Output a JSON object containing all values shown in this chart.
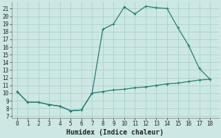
{
  "xlabel": "Humidex (Indice chaleur)",
  "background_color": "#cde8e4",
  "grid_color": "#aed4ce",
  "line_color": "#1e7a6e",
  "xlim": [
    -0.5,
    18.8
  ],
  "ylim": [
    6.8,
    21.8
  ],
  "xticks": [
    0,
    1,
    2,
    3,
    4,
    5,
    6,
    7,
    8,
    9,
    10,
    11,
    12,
    13,
    14,
    15,
    16,
    17,
    18
  ],
  "yticks": [
    7,
    8,
    9,
    10,
    11,
    12,
    13,
    14,
    15,
    16,
    17,
    18,
    19,
    20,
    21
  ],
  "upper_x": [
    0,
    1,
    2,
    3,
    4,
    5,
    6,
    7,
    8,
    9,
    10,
    11,
    12,
    13,
    14,
    15,
    16,
    17,
    18
  ],
  "upper_y": [
    10.2,
    8.8,
    8.8,
    8.5,
    8.3,
    7.7,
    7.8,
    10.0,
    18.3,
    19.0,
    21.2,
    20.3,
    21.3,
    21.1,
    21.0,
    18.5,
    16.2,
    13.2,
    11.8
  ],
  "lower_x": [
    0,
    1,
    2,
    3,
    4,
    5,
    6,
    7,
    8,
    9,
    10,
    11,
    12,
    13,
    14,
    15,
    16,
    17,
    18
  ],
  "lower_y": [
    10.2,
    8.8,
    8.8,
    8.5,
    8.3,
    7.7,
    7.8,
    10.0,
    10.2,
    10.4,
    10.5,
    10.7,
    10.8,
    11.0,
    11.2,
    11.3,
    11.5,
    11.7,
    11.8
  ],
  "xlabel_fontsize": 7,
  "tick_fontsize": 5.5
}
